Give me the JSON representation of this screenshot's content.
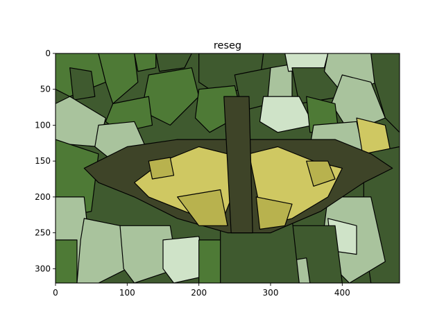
{
  "chart_data": {
    "type": "image",
    "title": "reseg",
    "xlabel": "",
    "ylabel": "",
    "image_width": 480,
    "image_height": 320,
    "xlim": [
      0,
      480
    ],
    "ylim": [
      320,
      0
    ],
    "x_ticks": [
      0,
      100,
      200,
      300,
      400
    ],
    "y_ticks": [
      0,
      50,
      100,
      150,
      200,
      250,
      300
    ],
    "grid": false,
    "colors": {
      "boundary": "#000000",
      "dark_green": "#3f5a2f",
      "mid_green": "#4e7a36",
      "pale_sage": "#a9c39d",
      "very_pale": "#cfe3c8",
      "wing_yellow": "#cfc862",
      "mustard": "#b8b24e",
      "olive_body": "#3e4428"
    }
  }
}
